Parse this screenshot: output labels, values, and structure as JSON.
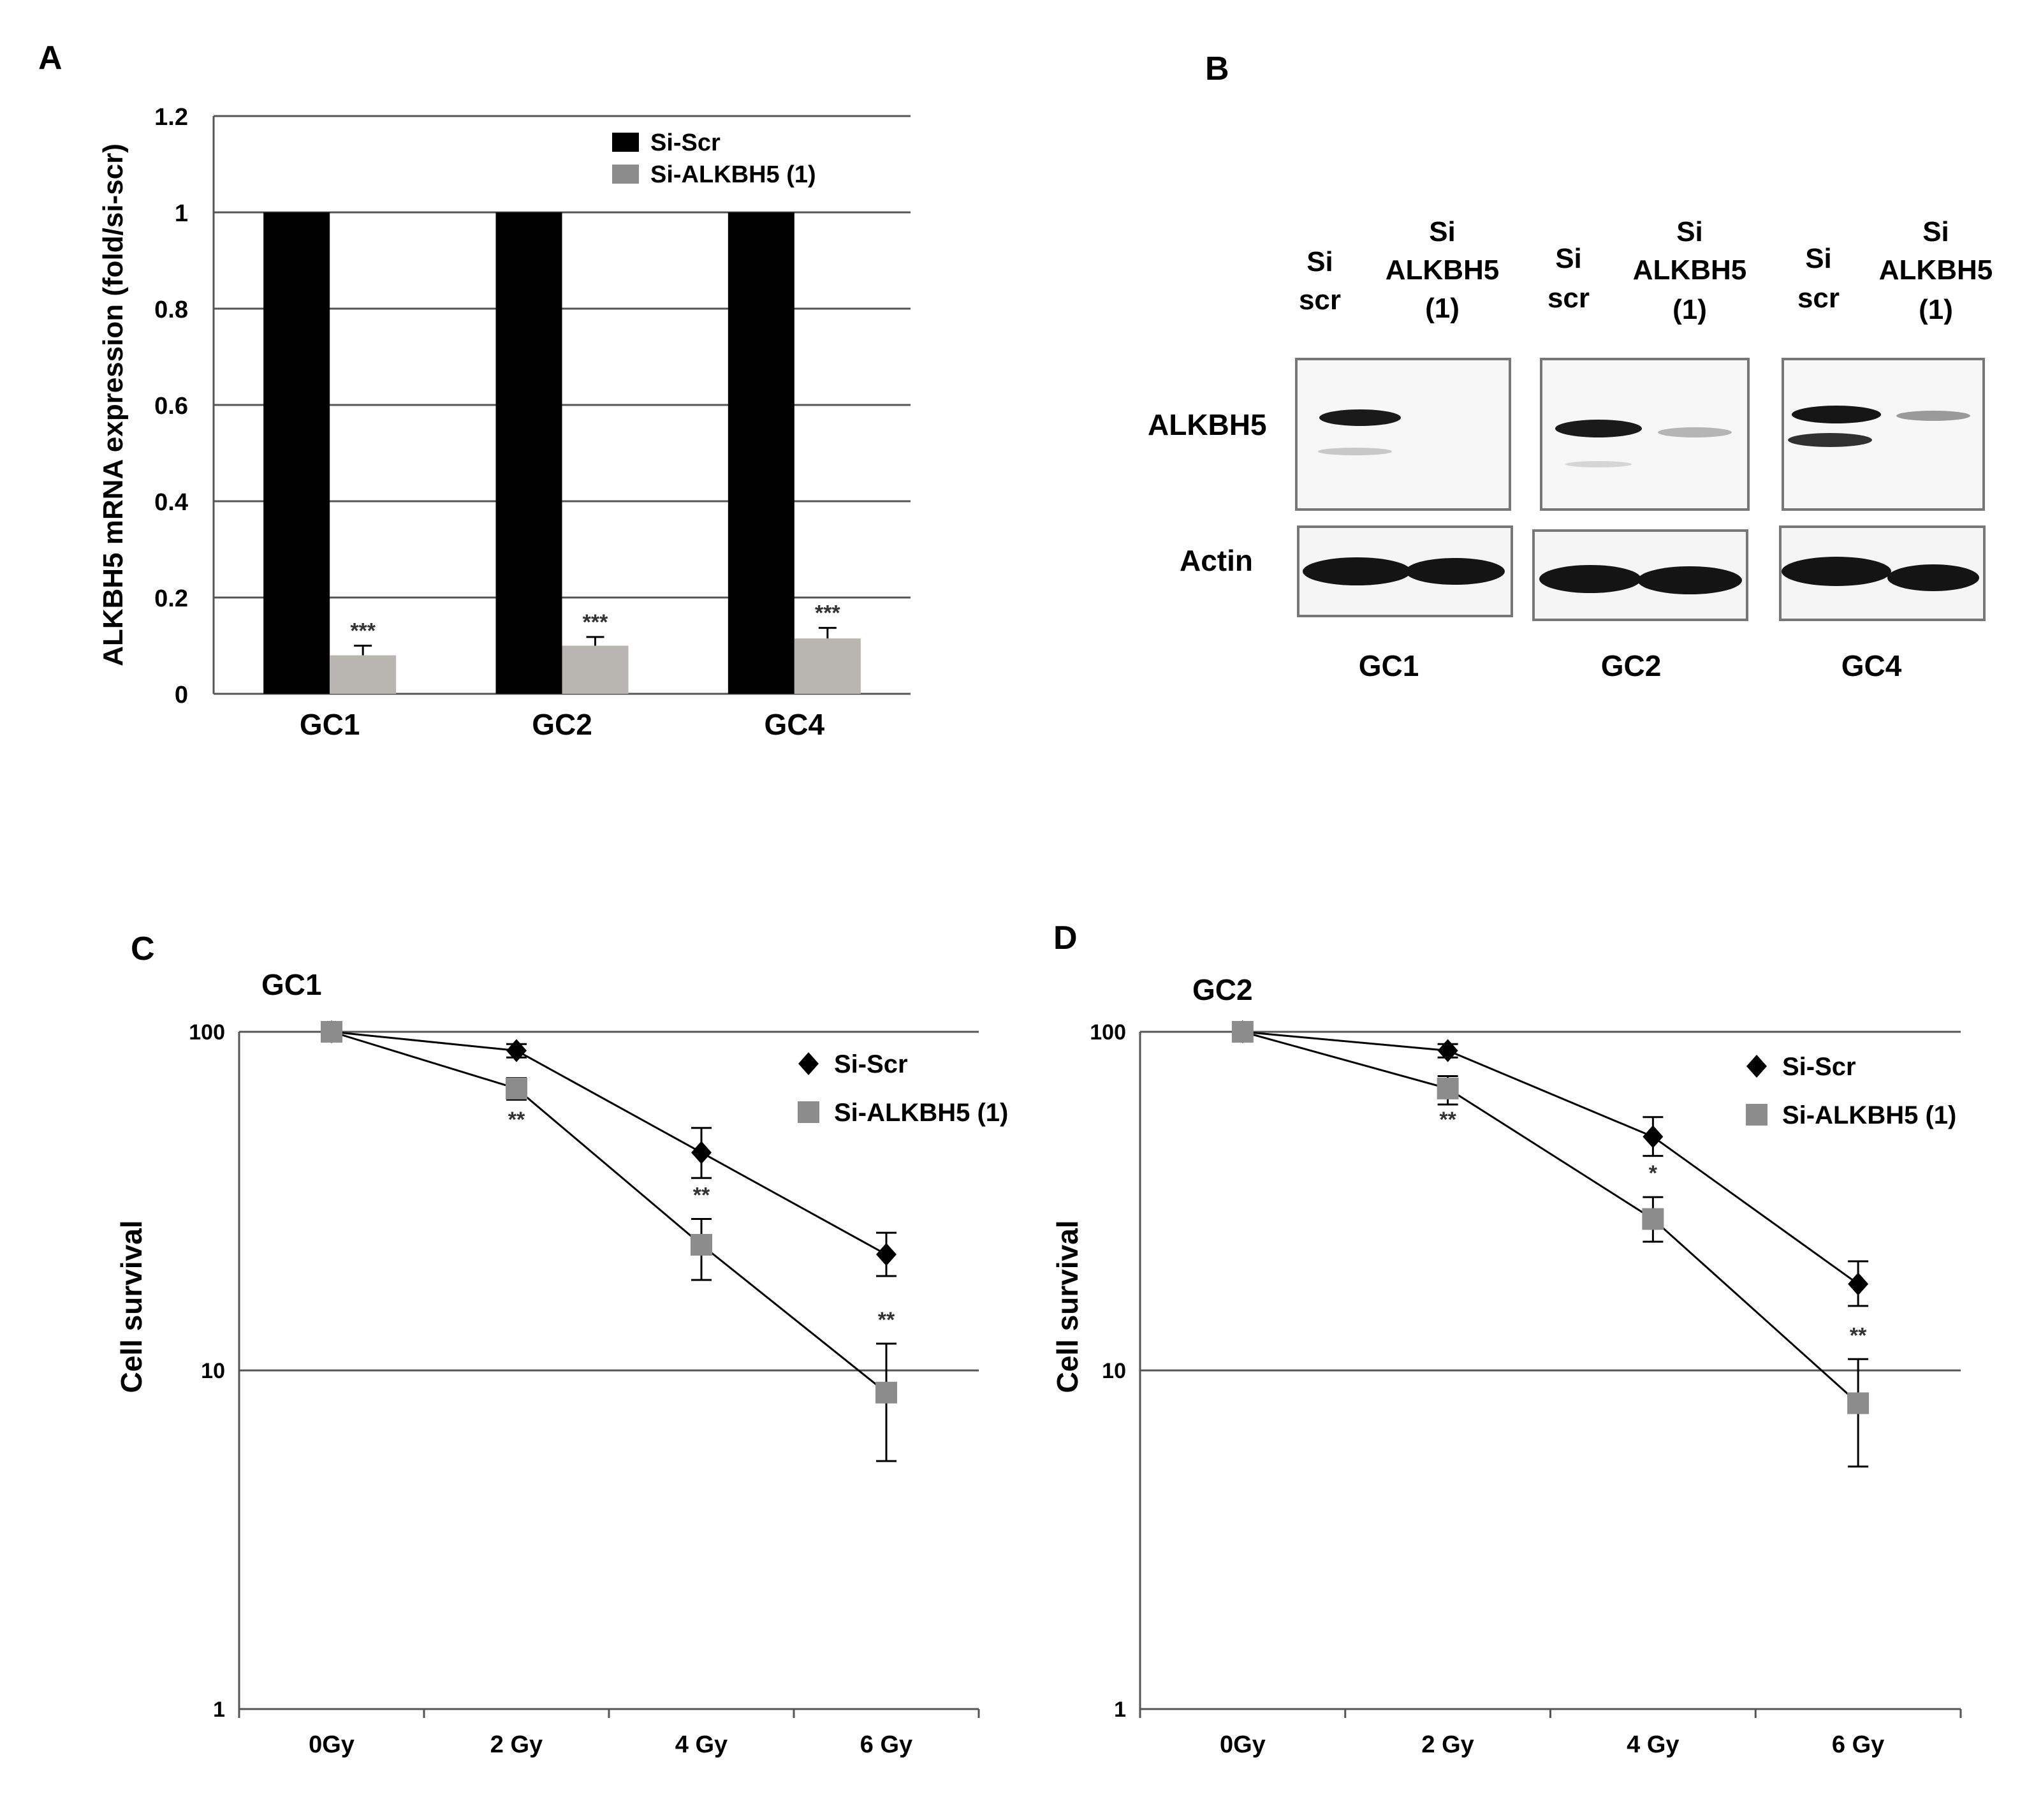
{
  "panel_letters": {
    "a": "A",
    "b": "B",
    "c": "C",
    "d": "D"
  },
  "colors": {
    "si_scr": "#000000",
    "si_alkbh5": "#b9b5b1",
    "marker_alkbh5": "#8c8c8c",
    "axis": "#555555",
    "grid": "#555555"
  },
  "chart_data": [
    {
      "panel": "A",
      "type": "bar",
      "title": "",
      "xlabel": "",
      "ylabel": "ALKBH5 mRNA expression (fold/si-scr)",
      "ylim": [
        0,
        1.2
      ],
      "yticks": [
        0,
        0.2,
        0.4,
        0.6,
        0.8,
        1,
        1.2
      ],
      "ytick_labels": [
        "0",
        "0.2",
        "0.4",
        "0.6",
        "0.8",
        "1",
        "1.2"
      ],
      "categories": [
        "GC1",
        "GC2",
        "GC4"
      ],
      "grid": true,
      "legend_position": "top-right",
      "legend": [
        "Si-Scr",
        "Si-ALKBH5 (1)"
      ],
      "series": [
        {
          "name": "Si-Scr",
          "values": [
            1,
            1,
            1
          ],
          "errors": [
            0,
            0,
            0
          ],
          "sig": [
            "",
            "",
            ""
          ]
        },
        {
          "name": "Si-ALKBH5 (1)",
          "values": [
            0.08,
            0.1,
            0.115
          ],
          "errors": [
            0.02,
            0.018,
            0.022
          ],
          "sig": [
            "***",
            "***",
            "***"
          ]
        }
      ]
    },
    {
      "panel": "C",
      "type": "line",
      "title": "GC1",
      "xlabel": "",
      "ylabel": "Cell survival",
      "yscale": "log",
      "ylim": [
        1,
        100
      ],
      "yticks": [
        1,
        10,
        100
      ],
      "ytick_labels": [
        "1",
        "10",
        "100"
      ],
      "categories": [
        "0Gy",
        "2 Gy",
        "4 Gy",
        "6 Gy"
      ],
      "grid": true,
      "legend_position": "top-right",
      "legend": [
        "Si-Scr",
        "Si-ALKBH5 (1)"
      ],
      "series": [
        {
          "name": "Si-Scr",
          "marker": "diamond",
          "values": [
            100,
            88,
            44,
            22
          ],
          "err_low": [
            0,
            4,
            7,
            3
          ],
          "err_high": [
            0,
            4,
            8,
            3.5
          ]
        },
        {
          "name": "Si-ALKBH5 (1)",
          "marker": "square",
          "values": [
            100,
            68,
            23.5,
            8.6
          ],
          "err_low": [
            0,
            5,
            5,
            3.2
          ],
          "err_high": [
            0,
            5,
            4.5,
            3.4
          ]
        }
      ],
      "sig": [
        "",
        "**",
        "**",
        "**"
      ]
    },
    {
      "panel": "D",
      "type": "line",
      "title": "GC2",
      "xlabel": "",
      "ylabel": "Cell survival",
      "yscale": "log",
      "ylim": [
        1,
        100
      ],
      "yticks": [
        1,
        10,
        100
      ],
      "ytick_labels": [
        "1",
        "10",
        "100"
      ],
      "categories": [
        "0Gy",
        "2 Gy",
        "4 Gy",
        "6 Gy"
      ],
      "grid": true,
      "legend_position": "top-right",
      "legend": [
        "Si-Scr",
        "Si-ALKBH5 (1)"
      ],
      "series": [
        {
          "name": "Si-Scr",
          "marker": "diamond",
          "values": [
            100,
            88,
            49,
            18
          ],
          "err_low": [
            0,
            4,
            6,
            2.5
          ],
          "err_high": [
            0,
            4,
            7,
            3
          ]
        },
        {
          "name": "Si-ALKBH5 (1)",
          "marker": "square",
          "values": [
            100,
            68,
            28,
            8
          ],
          "err_low": [
            0,
            7,
            4,
            2.8
          ],
          "err_high": [
            0,
            6,
            4.5,
            2.8
          ]
        }
      ],
      "sig": [
        "",
        "**",
        "*",
        "**"
      ]
    }
  ],
  "western_blot": {
    "lane_headers": [
      {
        "line1": "Si",
        "line2": "scr",
        "line3": ""
      },
      {
        "line1": "Si",
        "line2": "ALKBH5",
        "line3": "(1)"
      },
      {
        "line1": "Si",
        "line2": "scr",
        "line3": ""
      },
      {
        "line1": "Si",
        "line2": "ALKBH5",
        "line3": "(1)"
      },
      {
        "line1": "Si",
        "line2": "scr",
        "line3": ""
      },
      {
        "line1": "Si",
        "line2": "ALKBH5",
        "line3": "(1)"
      }
    ],
    "row_labels": [
      "ALKBH5",
      "Actin"
    ],
    "cell_lines": [
      "GC1",
      "GC2",
      "GC4"
    ]
  }
}
